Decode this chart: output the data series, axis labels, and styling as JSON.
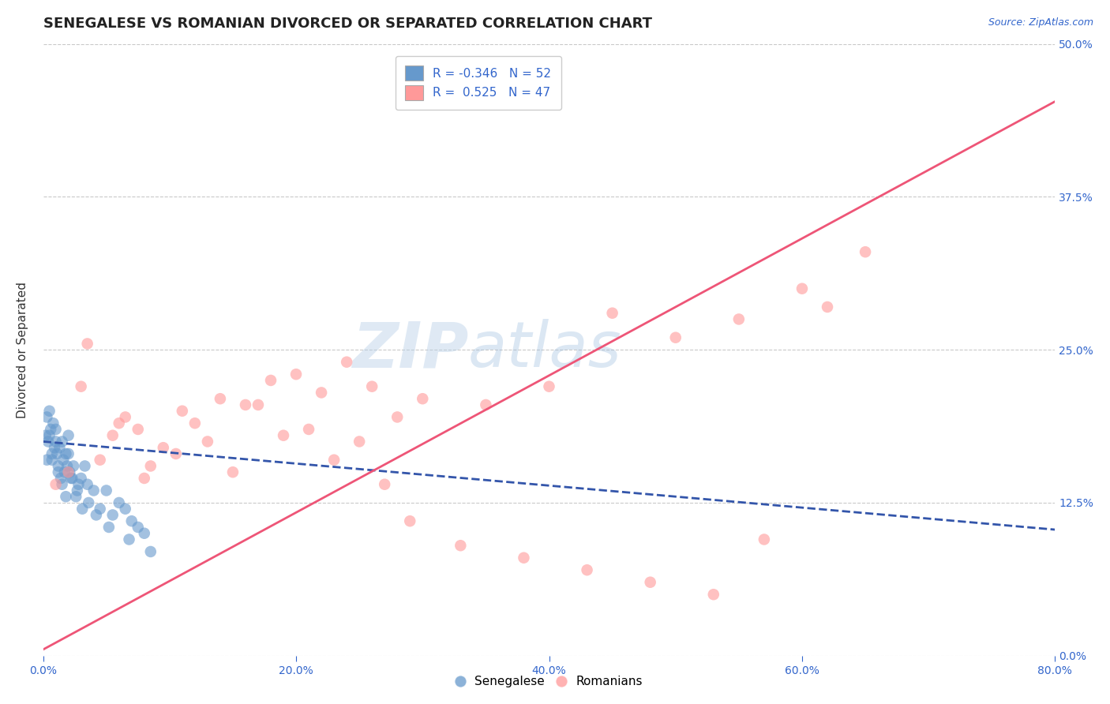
{
  "title": "SENEGALESE VS ROMANIAN DIVORCED OR SEPARATED CORRELATION CHART",
  "source_text": "Source: ZipAtlas.com",
  "ylabel": "Divorced or Separated",
  "xlabel": "",
  "watermark_zip": "ZIP",
  "watermark_atlas": "atlas",
  "xlim": [
    0.0,
    80.0
  ],
  "ylim": [
    0.0,
    50.0
  ],
  "xticks": [
    0.0,
    20.0,
    40.0,
    60.0,
    80.0
  ],
  "yticks": [
    0.0,
    12.5,
    25.0,
    37.5,
    50.0
  ],
  "senegalese_R": -0.346,
  "senegalese_N": 52,
  "romanian_R": 0.525,
  "romanian_N": 47,
  "senegalese_color": "#6699CC",
  "romanian_color": "#FF9999",
  "senegalese_line_color": "#3355AA",
  "romanian_line_color": "#EE5577",
  "legend_entries": [
    "Senegalese",
    "Romanians"
  ],
  "background_color": "#FFFFFF",
  "grid_color": "#BBBBBB",
  "title_fontsize": 13,
  "axis_fontsize": 11,
  "tick_fontsize": 10,
  "senegalese_x": [
    0.2,
    0.3,
    0.4,
    0.5,
    0.6,
    0.7,
    0.8,
    0.9,
    1.0,
    1.1,
    1.2,
    1.3,
    1.4,
    1.5,
    1.6,
    1.7,
    1.8,
    1.9,
    2.0,
    2.1,
    2.2,
    2.4,
    2.6,
    2.8,
    3.0,
    3.3,
    3.6,
    4.0,
    4.5,
    5.0,
    5.5,
    6.0,
    6.5,
    7.0,
    7.5,
    8.0,
    0.3,
    0.5,
    0.7,
    1.0,
    1.2,
    1.5,
    1.8,
    2.0,
    2.3,
    2.7,
    3.1,
    3.5,
    4.2,
    5.2,
    6.8,
    8.5
  ],
  "senegalese_y": [
    18.0,
    19.5,
    17.5,
    20.0,
    18.5,
    16.0,
    19.0,
    17.0,
    18.5,
    16.5,
    15.5,
    17.0,
    14.5,
    17.5,
    16.0,
    15.0,
    16.5,
    15.5,
    18.0,
    15.0,
    14.5,
    15.5,
    13.0,
    14.0,
    14.5,
    15.5,
    12.5,
    13.5,
    12.0,
    13.5,
    11.5,
    12.5,
    12.0,
    11.0,
    10.5,
    10.0,
    16.0,
    18.0,
    16.5,
    17.5,
    15.0,
    14.0,
    13.0,
    16.5,
    14.5,
    13.5,
    12.0,
    14.0,
    11.5,
    10.5,
    9.5,
    8.5
  ],
  "romanian_x": [
    1.0,
    2.0,
    3.0,
    4.5,
    5.5,
    6.5,
    7.5,
    8.5,
    9.5,
    10.5,
    12.0,
    14.0,
    16.0,
    18.0,
    20.0,
    22.0,
    24.0,
    26.0,
    28.0,
    30.0,
    35.0,
    40.0,
    45.0,
    50.0,
    55.0,
    60.0,
    65.0,
    3.5,
    6.0,
    8.0,
    11.0,
    13.0,
    15.0,
    17.0,
    19.0,
    21.0,
    23.0,
    25.0,
    27.0,
    29.0,
    33.0,
    38.0,
    43.0,
    48.0,
    53.0,
    57.0,
    62.0
  ],
  "romanian_y": [
    14.0,
    15.0,
    22.0,
    16.0,
    18.0,
    19.5,
    18.5,
    15.5,
    17.0,
    16.5,
    19.0,
    21.0,
    20.5,
    22.5,
    23.0,
    21.5,
    24.0,
    22.0,
    19.5,
    21.0,
    20.5,
    22.0,
    28.0,
    26.0,
    27.5,
    30.0,
    33.0,
    25.5,
    19.0,
    14.5,
    20.0,
    17.5,
    15.0,
    20.5,
    18.0,
    18.5,
    16.0,
    17.5,
    14.0,
    11.0,
    9.0,
    8.0,
    7.0,
    6.0,
    5.0,
    9.5,
    28.5
  ]
}
